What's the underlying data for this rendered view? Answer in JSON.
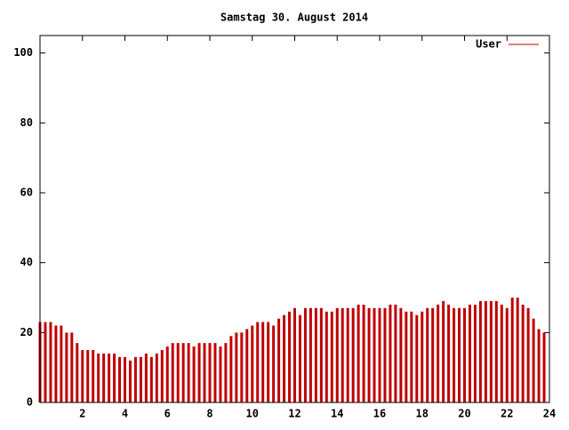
{
  "chart_data": {
    "type": "impulse",
    "title": "Samstag 30. August 2014",
    "x": [
      0,
      0.25,
      0.5,
      0.75,
      1,
      1.25,
      1.5,
      1.75,
      2,
      2.25,
      2.5,
      2.75,
      3,
      3.25,
      3.5,
      3.75,
      4,
      4.25,
      4.5,
      4.75,
      5,
      5.25,
      5.5,
      5.75,
      6,
      6.25,
      6.5,
      6.75,
      7,
      7.25,
      7.5,
      7.75,
      8,
      8.25,
      8.5,
      8.75,
      9,
      9.25,
      9.5,
      9.75,
      10,
      10.25,
      10.5,
      10.75,
      11,
      11.25,
      11.5,
      11.75,
      12,
      12.25,
      12.5,
      12.75,
      13,
      13.25,
      13.5,
      13.75,
      14,
      14.25,
      14.5,
      14.75,
      15,
      15.25,
      15.5,
      15.75,
      16,
      16.25,
      16.5,
      16.75,
      17,
      17.25,
      17.5,
      17.75,
      18,
      18.25,
      18.5,
      18.75,
      19,
      19.25,
      19.5,
      19.75,
      20,
      20.25,
      20.5,
      20.75,
      21,
      21.25,
      21.5,
      21.75,
      22,
      22.25,
      22.5,
      22.75,
      23,
      23.25,
      23.5,
      23.75
    ],
    "series": [
      {
        "name": "User",
        "color": "#c00000",
        "values": [
          23,
          23,
          23,
          22,
          22,
          20,
          20,
          17,
          15,
          15,
          15,
          14,
          14,
          14,
          14,
          13,
          13,
          12,
          13,
          13,
          14,
          13,
          14,
          15,
          16,
          17,
          17,
          17,
          17,
          16,
          17,
          17,
          17,
          17,
          16,
          17,
          19,
          20,
          20,
          21,
          22,
          23,
          23,
          23,
          22,
          24,
          25,
          26,
          27,
          25,
          27,
          27,
          27,
          27,
          26,
          26,
          27,
          27,
          27,
          27,
          28,
          28,
          27,
          27,
          27,
          27,
          28,
          28,
          27,
          26,
          26,
          25,
          26,
          27,
          27,
          28,
          29,
          28,
          27,
          27,
          27,
          28,
          28,
          29,
          29,
          29,
          29,
          28,
          27,
          30,
          30,
          28,
          27,
          24,
          21,
          20
        ]
      }
    ],
    "xlim": [
      0,
      24
    ],
    "xticks": [
      2,
      4,
      6,
      8,
      10,
      12,
      14,
      16,
      18,
      20,
      22,
      24
    ],
    "ylim": [
      0,
      105
    ],
    "yticks": [
      0,
      20,
      40,
      60,
      80,
      100
    ],
    "legend": "upper right"
  }
}
